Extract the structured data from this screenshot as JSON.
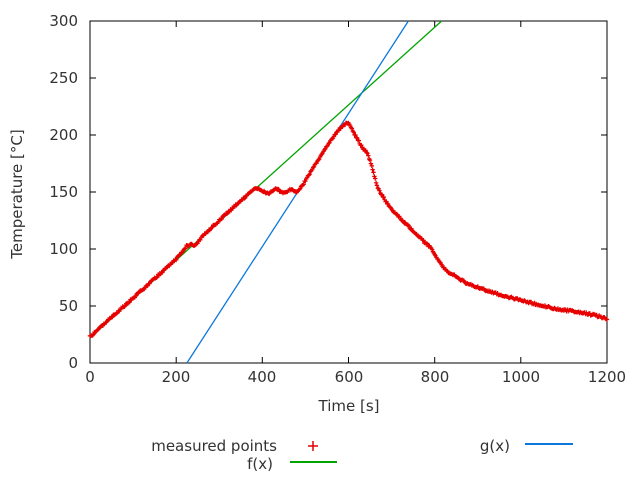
{
  "chart_data": {
    "type": "scatter",
    "title": "",
    "x_axis": {
      "label": "Time [s]",
      "min": 0,
      "max": 1200,
      "ticks": [
        0,
        200,
        400,
        600,
        800,
        1000,
        1200
      ]
    },
    "y_axis": {
      "label": "Temperature [°C]",
      "min": 0,
      "max": 300,
      "ticks": [
        0,
        50,
        100,
        150,
        200,
        250,
        300
      ]
    },
    "grid": "off",
    "border_color": "#000000",
    "series": [
      {
        "name": "measured points",
        "type": "points",
        "marker": "plus",
        "color": "#e60000",
        "sample_step_s": 2,
        "noise_amplitude_c": 0.9,
        "keypoints": [
          [
            0,
            23
          ],
          [
            50,
            40
          ],
          [
            100,
            57
          ],
          [
            150,
            74
          ],
          [
            200,
            91
          ],
          [
            215,
            98
          ],
          [
            225,
            103
          ],
          [
            235,
            104
          ],
          [
            245,
            103
          ],
          [
            260,
            111
          ],
          [
            300,
            125
          ],
          [
            340,
            139
          ],
          [
            365,
            147
          ],
          [
            378,
            151.5
          ],
          [
            384,
            152.5
          ],
          [
            392,
            153
          ],
          [
            400,
            151
          ],
          [
            408,
            149
          ],
          [
            416,
            149
          ],
          [
            424,
            151.5
          ],
          [
            432,
            153
          ],
          [
            440,
            151
          ],
          [
            448,
            149
          ],
          [
            456,
            150
          ],
          [
            464,
            152.5
          ],
          [
            472,
            151
          ],
          [
            480,
            149.5
          ],
          [
            488,
            153
          ],
          [
            500,
            160
          ],
          [
            515,
            169
          ],
          [
            530,
            178
          ],
          [
            545,
            187
          ],
          [
            560,
            196
          ],
          [
            572,
            202
          ],
          [
            582,
            206.5
          ],
          [
            590,
            209.5
          ],
          [
            597,
            210.5
          ],
          [
            603,
            209
          ],
          [
            610,
            203
          ],
          [
            618,
            198
          ],
          [
            626,
            193
          ],
          [
            634,
            188
          ],
          [
            640,
            186
          ],
          [
            646,
            182
          ],
          [
            652,
            175
          ],
          [
            658,
            167
          ],
          [
            664,
            158
          ],
          [
            670,
            152
          ],
          [
            678,
            147
          ],
          [
            688,
            141
          ],
          [
            700,
            135
          ],
          [
            715,
            129
          ],
          [
            730,
            123
          ],
          [
            745,
            118
          ],
          [
            758,
            113
          ],
          [
            768,
            109
          ],
          [
            776,
            106
          ],
          [
            784,
            103.5
          ],
          [
            792,
            101
          ],
          [
            798,
            97
          ],
          [
            806,
            92
          ],
          [
            814,
            87
          ],
          [
            822,
            83.5
          ],
          [
            832,
            80
          ],
          [
            845,
            77
          ],
          [
            858,
            73.5
          ],
          [
            872,
            70.5
          ],
          [
            888,
            68
          ],
          [
            905,
            65.5
          ],
          [
            925,
            63
          ],
          [
            945,
            60.5
          ],
          [
            970,
            58
          ],
          [
            1000,
            55
          ],
          [
            1030,
            52
          ],
          [
            1060,
            49.5
          ],
          [
            1090,
            47
          ],
          [
            1110,
            46
          ],
          [
            1130,
            45
          ],
          [
            1150,
            43.5
          ],
          [
            1170,
            42
          ],
          [
            1185,
            40.5
          ],
          [
            1200,
            39
          ]
        ]
      },
      {
        "name": "f(x)",
        "type": "line",
        "color": "#00a400",
        "points": [
          [
            0,
            22
          ],
          [
            816,
            300
          ]
        ]
      },
      {
        "name": "g(x)",
        "type": "line",
        "color": "#0d78dc",
        "points": [
          [
            225,
            0
          ],
          [
            739,
            300
          ]
        ]
      }
    ],
    "legend": {
      "position": "below",
      "entries": [
        {
          "label": "measured points",
          "swatch": "plus-marker",
          "color": "#e60000"
        },
        {
          "label": "f(x)",
          "swatch": "line",
          "color": "#00a400"
        },
        {
          "label": "g(x)",
          "swatch": "line",
          "color": "#0d78dc"
        }
      ]
    }
  }
}
